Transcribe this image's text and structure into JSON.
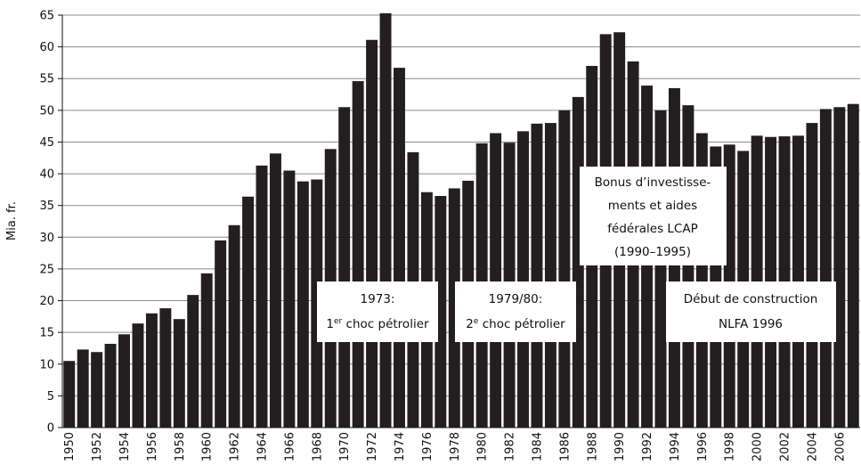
{
  "chart_data": {
    "type": "bar",
    "ylabel": "Mia. fr.",
    "xlabel": "",
    "title": "",
    "ylim": [
      0,
      65
    ],
    "yticks": [
      0,
      5,
      10,
      15,
      20,
      25,
      30,
      35,
      40,
      45,
      50,
      55,
      60,
      65
    ],
    "grid": "horizontal",
    "bar_color": "#231f20",
    "grid_color": "#8c8c8c",
    "categories": [
      "1950",
      "1951",
      "1952",
      "1953",
      "1954",
      "1955",
      "1956",
      "1957",
      "1958",
      "1959",
      "1960",
      "1961",
      "1962",
      "1963",
      "1964",
      "1965",
      "1966",
      "1967",
      "1968",
      "1969",
      "1970",
      "1971",
      "1972",
      "1973",
      "1974",
      "1975",
      "1976",
      "1977",
      "1978",
      "1979",
      "1980",
      "1981",
      "1982",
      "1983",
      "1984",
      "1985",
      "1986",
      "1987",
      "1988",
      "1989",
      "1990",
      "1991",
      "1992",
      "1993",
      "1994",
      "1995",
      "1996",
      "1997",
      "1998",
      "1999",
      "2000",
      "2001",
      "2002",
      "2003",
      "2004",
      "2005",
      "2006",
      "2007"
    ],
    "x_tick_labels": [
      "1950",
      "1952",
      "1954",
      "1956",
      "1958",
      "1960",
      "1962",
      "1964",
      "1966",
      "1968",
      "1970",
      "1972",
      "1974",
      "1976",
      "1978",
      "1980",
      "1982",
      "1984",
      "1986",
      "1988",
      "1990",
      "1992",
      "1994",
      "1996",
      "1998",
      "2000",
      "2002",
      "2004",
      "2006"
    ],
    "values": [
      10.5,
      12.3,
      11.9,
      13.2,
      14.7,
      16.4,
      18.0,
      18.8,
      17.1,
      20.9,
      24.3,
      29.5,
      31.9,
      36.4,
      41.3,
      43.2,
      40.5,
      38.8,
      39.1,
      43.9,
      50.5,
      54.6,
      61.1,
      65.3,
      56.7,
      43.4,
      37.1,
      36.5,
      37.7,
      38.9,
      44.8,
      46.4,
      44.9,
      46.7,
      47.9,
      48.0,
      50.0,
      52.1,
      57.0,
      62.0,
      62.3,
      57.7,
      53.9,
      50.0,
      53.5,
      50.8,
      46.4,
      44.3,
      44.6,
      43.6,
      46.0,
      45.8,
      45.9,
      46.0,
      48.0,
      50.2,
      50.5,
      51.0
    ],
    "annotations": [
      {
        "lines": [
          "1973:",
          "1er choc pétrolier"
        ]
      },
      {
        "lines": [
          "1979/80:",
          "2e choc pétrolier"
        ]
      },
      {
        "lines": [
          "Bonus d’investisse-",
          "ments et aides",
          "fédérales LCAP",
          "(1990–1995)"
        ]
      },
      {
        "lines": [
          "Début de construction",
          "NLFA 1996"
        ]
      }
    ]
  }
}
